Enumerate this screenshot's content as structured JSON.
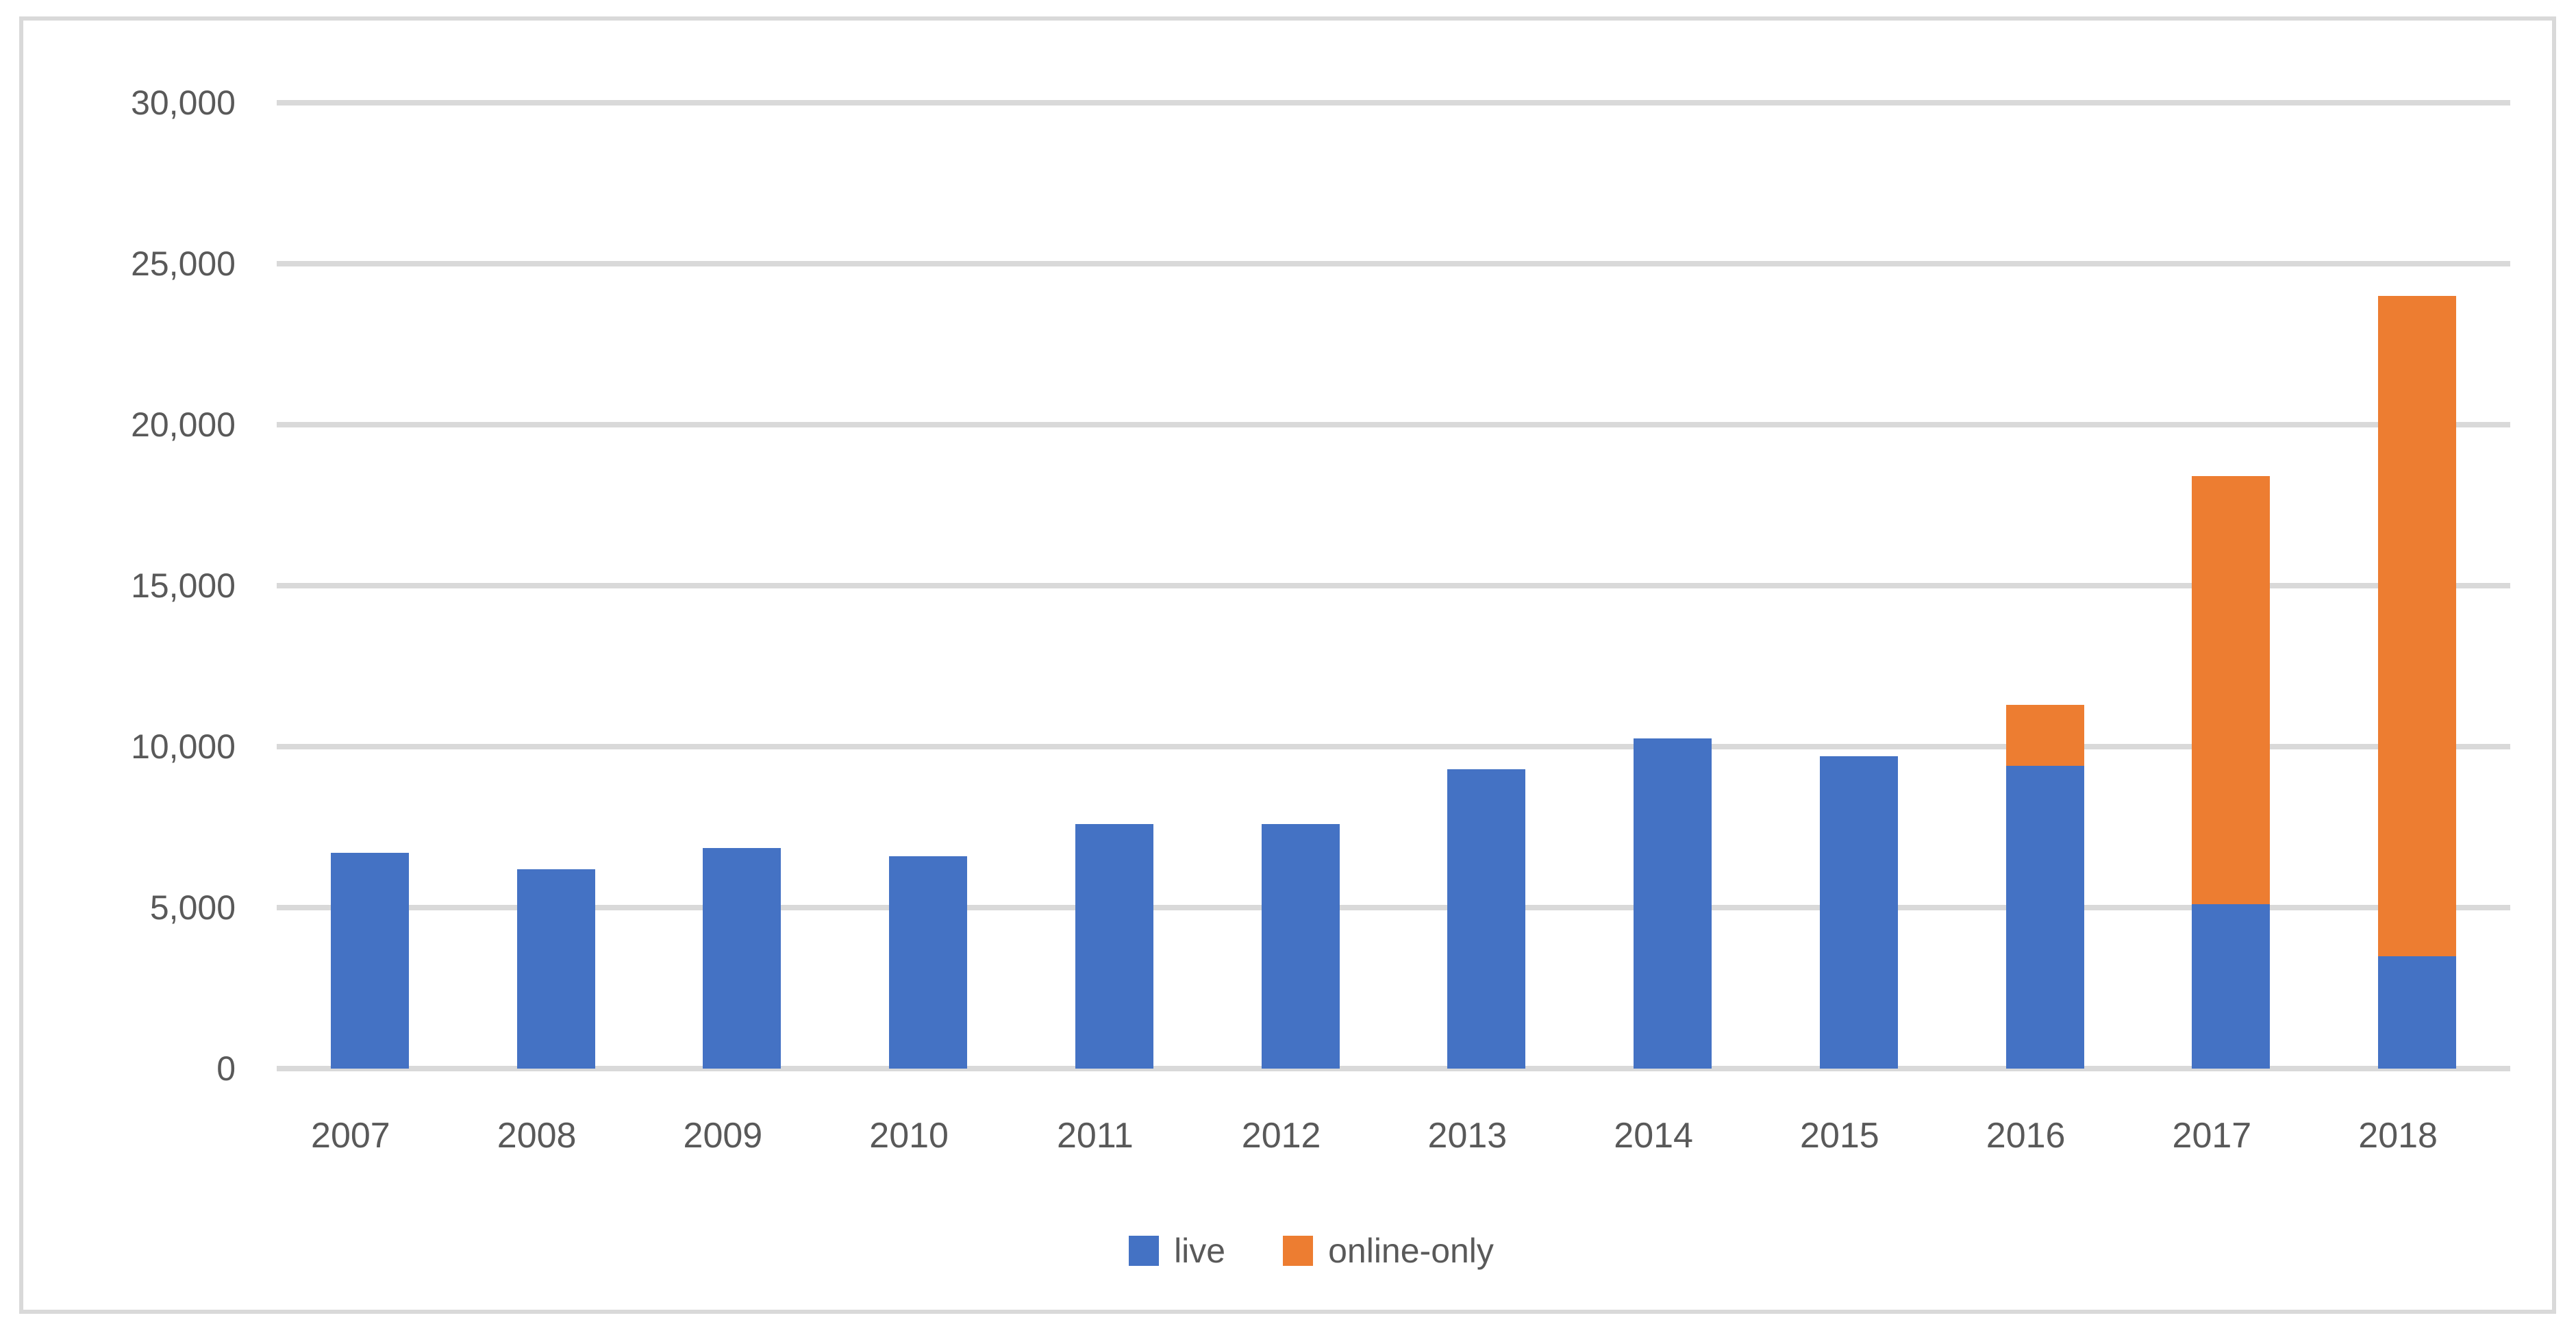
{
  "chart_data": {
    "type": "bar",
    "stacked": true,
    "title": "",
    "xlabel": "",
    "ylabel": "",
    "categories": [
      "2007",
      "2008",
      "2009",
      "2010",
      "2011",
      "2012",
      "2013",
      "2014",
      "2015",
      "2016",
      "2017",
      "2018"
    ],
    "series": [
      {
        "name": "live",
        "color": "#4472C4",
        "values": [
          6700,
          6200,
          6850,
          6600,
          7600,
          7600,
          9300,
          10250,
          9700,
          9400,
          5100,
          3500
        ]
      },
      {
        "name": "online-only",
        "color": "#ED7D31",
        "values": [
          0,
          0,
          0,
          0,
          0,
          0,
          0,
          0,
          0,
          1900,
          13300,
          20500
        ]
      }
    ],
    "totals": [
      6700,
      6200,
      6850,
      6600,
      7600,
      7600,
      9300,
      10250,
      9700,
      11300,
      18400,
      24000
    ],
    "ylim": [
      0,
      30000
    ],
    "y_ticks": [
      {
        "value": 30000,
        "label": "30,000"
      },
      {
        "value": 25000,
        "label": "25,000"
      },
      {
        "value": 20000,
        "label": "20,000"
      },
      {
        "value": 15000,
        "label": "15,000"
      },
      {
        "value": 10000,
        "label": "10,000"
      },
      {
        "value": 5000,
        "label": "5,000"
      },
      {
        "value": 0,
        "label": "0"
      }
    ],
    "grid": "horizontal",
    "legend_position": "bottom-center"
  },
  "colors": {
    "bar_live": "#4472C4",
    "bar_online_only": "#ED7D31",
    "gridline": "#D9D9D9",
    "chart_border": "#D9D9D9",
    "tick_text": "#595959",
    "background": "#FFFFFF"
  }
}
